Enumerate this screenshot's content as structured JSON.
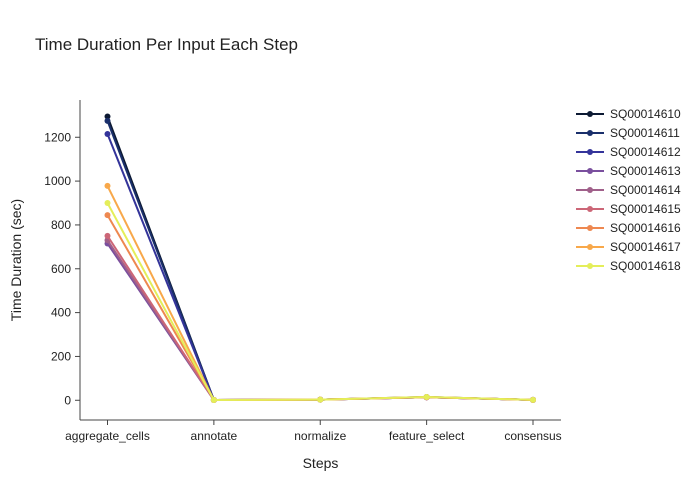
{
  "chart_data": {
    "type": "line",
    "title": "Time Duration Per Input Each Step",
    "xlabel": "Steps",
    "ylabel": "Time Duration (sec)",
    "categories": [
      "aggregate_cells",
      "annotate",
      "normalize",
      "feature_select",
      "consensus"
    ],
    "ylim": [
      -90,
      1370
    ],
    "yticks": [
      0,
      200,
      400,
      600,
      800,
      1000,
      1200
    ],
    "grid": false,
    "legend_position": "top-right",
    "series": [
      {
        "name": "SQ00014610",
        "color": "#0d1a33",
        "values": [
          1295,
          1,
          3,
          15,
          2
        ]
      },
      {
        "name": "SQ00014611",
        "color": "#1a2f6b",
        "values": [
          1275,
          1,
          3,
          14,
          2
        ]
      },
      {
        "name": "SQ00014612",
        "color": "#34349a",
        "values": [
          1215,
          1,
          3,
          14,
          2
        ]
      },
      {
        "name": "SQ00014613",
        "color": "#7a4f9e",
        "values": [
          715,
          1,
          3,
          14,
          2
        ]
      },
      {
        "name": "SQ00014614",
        "color": "#a0608a",
        "values": [
          730,
          1,
          3,
          14,
          2
        ]
      },
      {
        "name": "SQ00014615",
        "color": "#cc6677",
        "values": [
          750,
          1,
          3,
          14,
          2
        ]
      },
      {
        "name": "SQ00014616",
        "color": "#ee8850",
        "values": [
          845,
          1,
          3,
          14,
          2
        ]
      },
      {
        "name": "SQ00014617",
        "color": "#f8a84a",
        "values": [
          978,
          1,
          3,
          15,
          2
        ]
      },
      {
        "name": "SQ00014618",
        "color": "#e4ee5a",
        "values": [
          900,
          1,
          3,
          15,
          2
        ]
      }
    ]
  }
}
